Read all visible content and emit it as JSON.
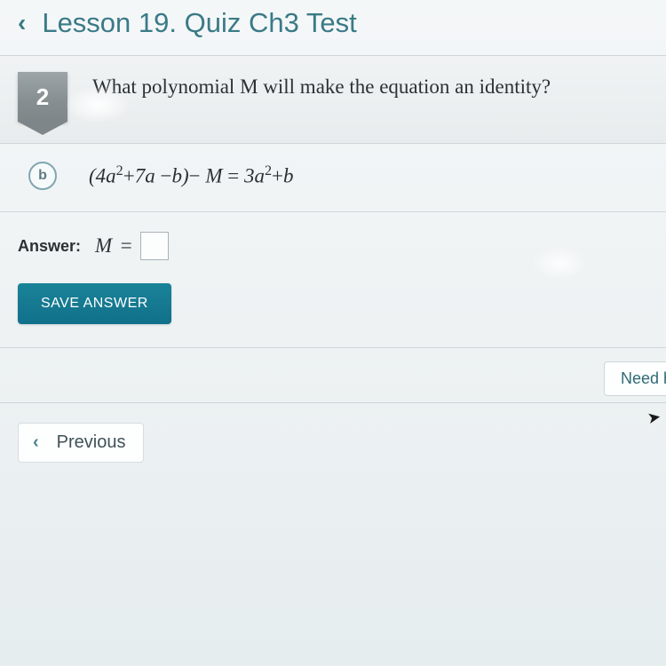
{
  "header": {
    "title": "Lesson 19. Quiz Ch3 Test"
  },
  "question": {
    "number": "2",
    "text": "What polynomial M will make the equation an identity?"
  },
  "subpart": {
    "label": "b",
    "equation_html": "(4<i>a</i><sup>2</sup><span class='op'>+</span>7<i>a</i> <span class='op'>−</span><i>b</i>)<span class='op'>−</span> M <span class='op'>=</span> 3<i>a</i><sup>2</sup><span class='op'>+</span><i>b</i>"
  },
  "answer": {
    "label": "Answer:",
    "variable": "M",
    "equals": "=",
    "value": ""
  },
  "buttons": {
    "save": "SAVE ANSWER",
    "need_help": "Need h",
    "previous": "Previous"
  }
}
